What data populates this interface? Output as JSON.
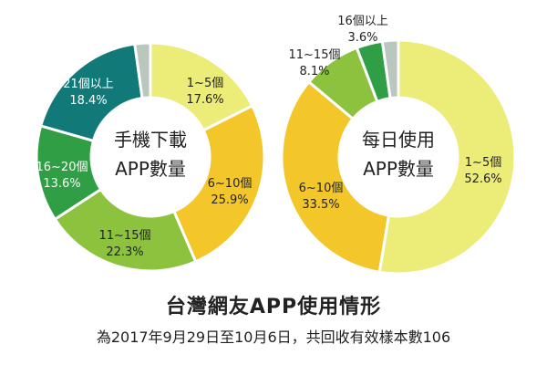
{
  "title": "台灣網友APP使用情形",
  "subtitle": "為2017年9月29日至10月6日，共回收有效樣本數106",
  "chart_data": [
    {
      "type": "pie",
      "center_label": [
        "手機下載",
        "APP數量"
      ],
      "slices": [
        {
          "label": "1~5個",
          "value": 17.6,
          "display": "17.6%",
          "color": "#ecec78"
        },
        {
          "label": "6~10個",
          "value": 25.9,
          "display": "25.9%",
          "color": "#f3c72a"
        },
        {
          "label": "11~15個",
          "value": 22.3,
          "display": "22.3%",
          "color": "#8cc23e"
        },
        {
          "label": "16~20個",
          "value": 13.6,
          "display": "13.6%",
          "color": "#2f9e44"
        },
        {
          "label": "21個以上",
          "value": 18.4,
          "display": "18.4%",
          "color": "#117a78"
        },
        {
          "label": "",
          "value": 2.2,
          "display": "",
          "color": "#b9c7be"
        }
      ]
    },
    {
      "type": "pie",
      "center_label": [
        "每日使用",
        "APP數量"
      ],
      "slices": [
        {
          "label": "1~5個",
          "value": 52.6,
          "display": "52.6%",
          "color": "#ecec78"
        },
        {
          "label": "6~10個",
          "value": 33.5,
          "display": "33.5%",
          "color": "#f3c72a"
        },
        {
          "label": "11~15個",
          "value": 8.1,
          "display": "8.1%",
          "color": "#8cc23e"
        },
        {
          "label": "16個以上",
          "value": 3.6,
          "display": "3.6%",
          "color": "#2f9e44"
        },
        {
          "label": "",
          "value": 2.2,
          "display": "",
          "color": "#b9c7be"
        }
      ]
    }
  ]
}
